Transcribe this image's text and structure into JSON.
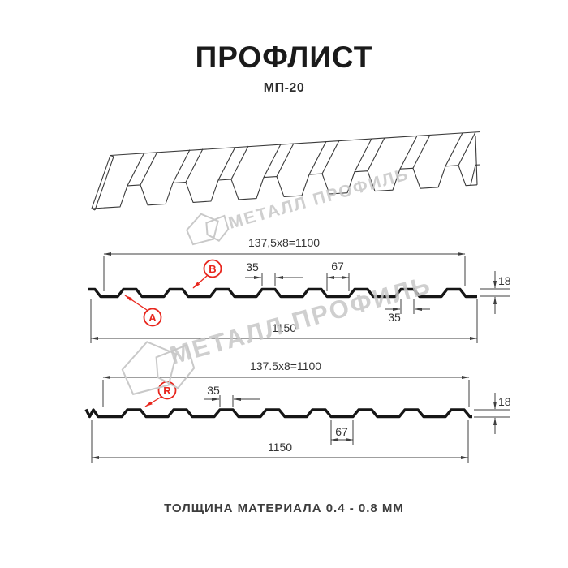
{
  "title": "ПРОФЛИСТ",
  "subtitle": "МП-20",
  "footer": "ТОЛЩИНА МАТЕРИАЛА 0.4 - 0.8 ММ",
  "watermark": {
    "brand": "МЕТАЛЛ ПРОФИЛЬ"
  },
  "colors": {
    "red": "#e8261d",
    "dim_lines": "#3f3f3f",
    "profile": "#161616",
    "watermark": "#c7c7c7"
  },
  "drawing1": {
    "top_total": "137,5x8=1100",
    "rib_top_width": "35",
    "flat_width": "67",
    "height": "18",
    "rib_bottom_width": "35",
    "overall_width": "1150",
    "marker_a": "A",
    "marker_b": "B"
  },
  "drawing2": {
    "top_total": "137.5x8=1100",
    "rib_top_width": "35",
    "flat_width": "67",
    "height": "18",
    "overall_width": "1150",
    "marker_r": "R"
  }
}
